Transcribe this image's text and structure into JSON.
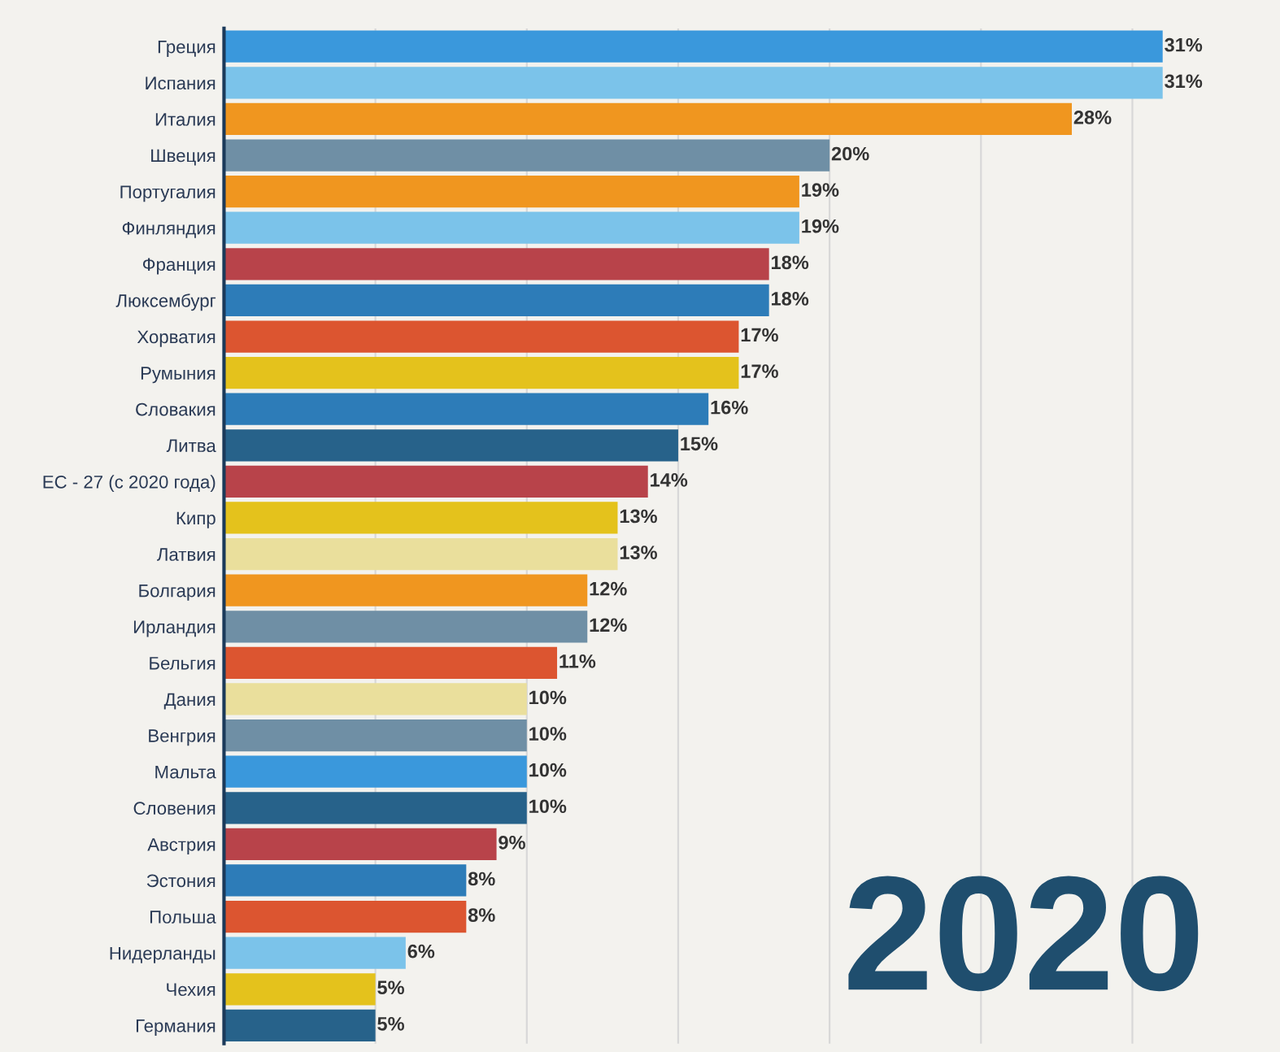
{
  "chart_data": {
    "type": "bar",
    "orientation": "horizontal",
    "categories": [
      "Греция",
      "Испания",
      "Италия",
      "Швеция",
      "Португалия",
      "Финляндия",
      "Франция",
      "Люксембург",
      "Хорватия",
      "Румыния",
      "Словакия",
      "Литва",
      "ЕС - 27 (с 2020 года)",
      "Кипр",
      "Латвия",
      "Болгария",
      "Ирландия",
      "Бельгия",
      "Дания",
      "Венгрия",
      "Мальта",
      "Словения",
      "Австрия",
      "Эстония",
      "Польша",
      "Нидерланды",
      "Чехия",
      "Германия"
    ],
    "values": [
      31,
      31,
      28,
      20,
      19,
      19,
      18,
      18,
      17,
      17,
      16,
      15,
      14,
      13,
      13,
      12,
      12,
      11,
      10,
      10,
      10,
      10,
      9,
      8,
      8,
      6,
      5,
      5
    ],
    "value_labels": [
      "31%",
      "31%",
      "28%",
      "20%",
      "19%",
      "19%",
      "18%",
      "18%",
      "17%",
      "17%",
      "16%",
      "15%",
      "14%",
      "13%",
      "13%",
      "12%",
      "12%",
      "11%",
      "10%",
      "10%",
      "10%",
      "10%",
      "9%",
      "8%",
      "8%",
      "6%",
      "5%",
      "5%"
    ],
    "colors": [
      "#3a98dc",
      "#7bc3ea",
      "#f0961f",
      "#6f8fa5",
      "#f0961f",
      "#7bc3ea",
      "#b8434a",
      "#2d7cb8",
      "#dc5530",
      "#e4c21c",
      "#2d7cb8",
      "#27628a",
      "#b8434a",
      "#e4c21c",
      "#eadf9c",
      "#f0961f",
      "#6f8fa5",
      "#dc5530",
      "#eadf9c",
      "#6f8fa5",
      "#3a98dc",
      "#27628a",
      "#b8434a",
      "#2d7cb8",
      "#dc5530",
      "#7bc3ea",
      "#e4c21c",
      "#27628a"
    ],
    "xticks": [
      {
        "value": 5,
        "label": null
      },
      {
        "value": 10,
        "label": null
      },
      {
        "value": 15,
        "label": null
      },
      {
        "value": 20,
        "label": null
      },
      {
        "value": 25,
        "label": null
      },
      {
        "value": 30,
        "label": null
      }
    ],
    "tick_labels": "y",
    "grid": "x",
    "legend": false,
    "annotations": [
      "2020"
    ]
  }
}
